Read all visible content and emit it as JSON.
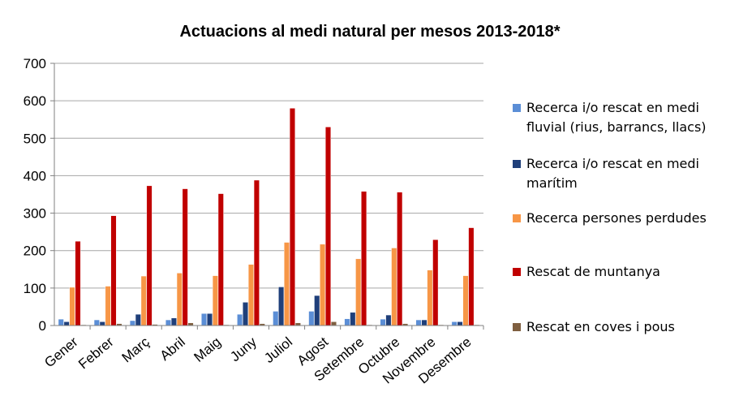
{
  "chart_data": {
    "type": "bar",
    "title": "Actuacions al medi natural per mesos 2013-2018*",
    "xlabel": "",
    "ylabel": "",
    "ylim": [
      0,
      700
    ],
    "yticks": [
      0,
      100,
      200,
      300,
      400,
      500,
      600,
      700
    ],
    "grid": true,
    "legend_position": "right",
    "categories": [
      "Gener",
      "Febrer",
      "Març",
      "Abril",
      "Maig",
      "Juny",
      "Juliol",
      "Agost",
      "Setembre",
      "Octubre",
      "Novembre",
      "Desembre"
    ],
    "series": [
      {
        "name": "Recerca i/o rescat en medi fluvial (rius, barrancs, llacs)",
        "color": "#5b8ed6",
        "values": [
          17,
          15,
          13,
          15,
          32,
          30,
          38,
          38,
          18,
          17,
          15,
          10
        ]
      },
      {
        "name": "Recerca i/o rescat en medi marítim",
        "color": "#1f3f7a",
        "values": [
          10,
          10,
          30,
          20,
          32,
          62,
          103,
          80,
          35,
          28,
          15,
          10
        ]
      },
      {
        "name": "Recerca persones perdudes",
        "color": "#f79646",
        "values": [
          102,
          105,
          132,
          140,
          133,
          163,
          222,
          217,
          178,
          207,
          148,
          133
        ]
      },
      {
        "name": "Rescat de muntanya",
        "color": "#c00000",
        "values": [
          225,
          293,
          373,
          365,
          352,
          388,
          580,
          530,
          358,
          356,
          229,
          261
        ]
      },
      {
        "name": "Rescat en coves i pous",
        "color": "#7f5f40",
        "values": [
          2,
          5,
          3,
          7,
          2,
          5,
          7,
          10,
          2,
          5,
          2,
          2
        ]
      }
    ],
    "legend_labels": [
      [
        "Recerca i/o rescat en medi",
        "fluvial (rius, barrancs, llacs)"
      ],
      [
        "Recerca i/o rescat en medi",
        "marítim"
      ],
      [
        "Recerca persones perdudes"
      ],
      [
        "Rescat de muntanya"
      ],
      [
        "Rescat en coves i pous"
      ]
    ]
  }
}
